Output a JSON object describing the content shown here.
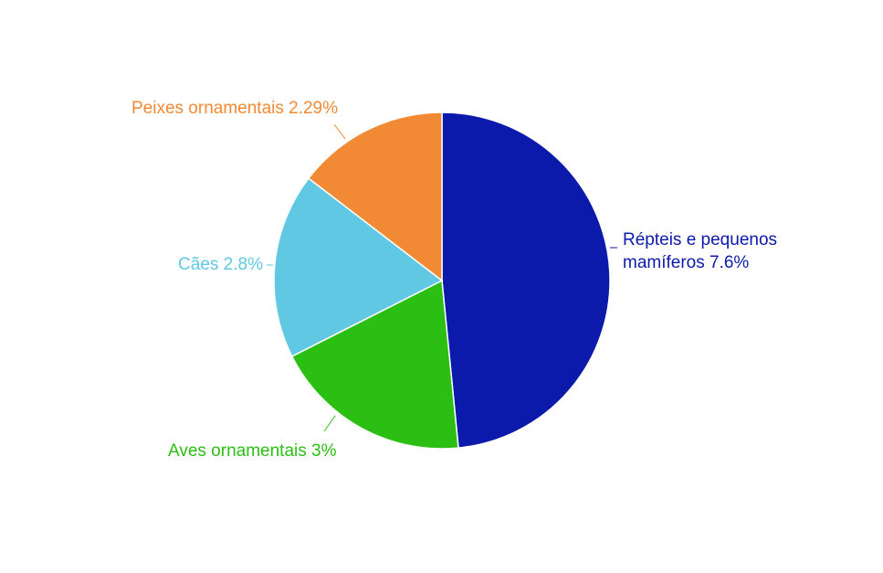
{
  "chart_data": {
    "type": "pie",
    "title": "",
    "start_angle_deg": 0,
    "direction": "clockwise",
    "slices": [
      {
        "name": "Répteis e pequenos mamíferos",
        "value": 7.6,
        "label": "Répteis e pequenos mamíferos 7.6%",
        "label_lines": [
          "Répteis e pequenos",
          "mamíferos 7.6%"
        ],
        "color": "#0b1aab"
      },
      {
        "name": "Aves ornamentais",
        "value": 3,
        "label": "Aves ornamentais 3%",
        "label_lines": [
          "Aves ornamentais 3%"
        ],
        "color": "#2abf12"
      },
      {
        "name": "Cães",
        "value": 2.8,
        "label": "Cães 2.8%",
        "label_lines": [
          "Cães 2.8%"
        ],
        "color": "#60c8e3"
      },
      {
        "name": "Peixes ornamentais",
        "value": 2.29,
        "label": "Peixes ornamentais 2.29%",
        "label_lines": [
          "Peixes ornamentais 2.29%"
        ],
        "color": "#f28a35"
      }
    ]
  }
}
